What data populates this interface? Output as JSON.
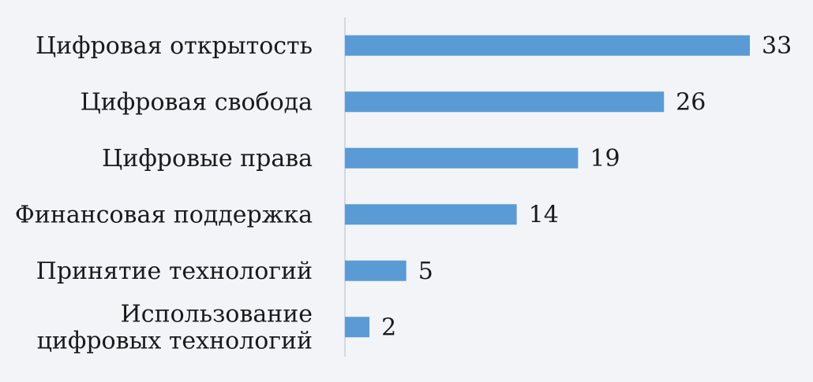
{
  "chart_data": {
    "type": "bar",
    "orientation": "horizontal",
    "categories": [
      [
        "Цифровая открытость"
      ],
      [
        "Цифровая свобода"
      ],
      [
        "Цифровые права"
      ],
      [
        "Финансовая поддержка"
      ],
      [
        "Принятие технологий"
      ],
      [
        "Использование",
        "цифровых технологий"
      ]
    ],
    "values": [
      33,
      26,
      19,
      14,
      5,
      2
    ],
    "xlim": [
      0,
      33
    ],
    "grid": false,
    "legend": "none",
    "bar_color": "#5b9bd5"
  }
}
